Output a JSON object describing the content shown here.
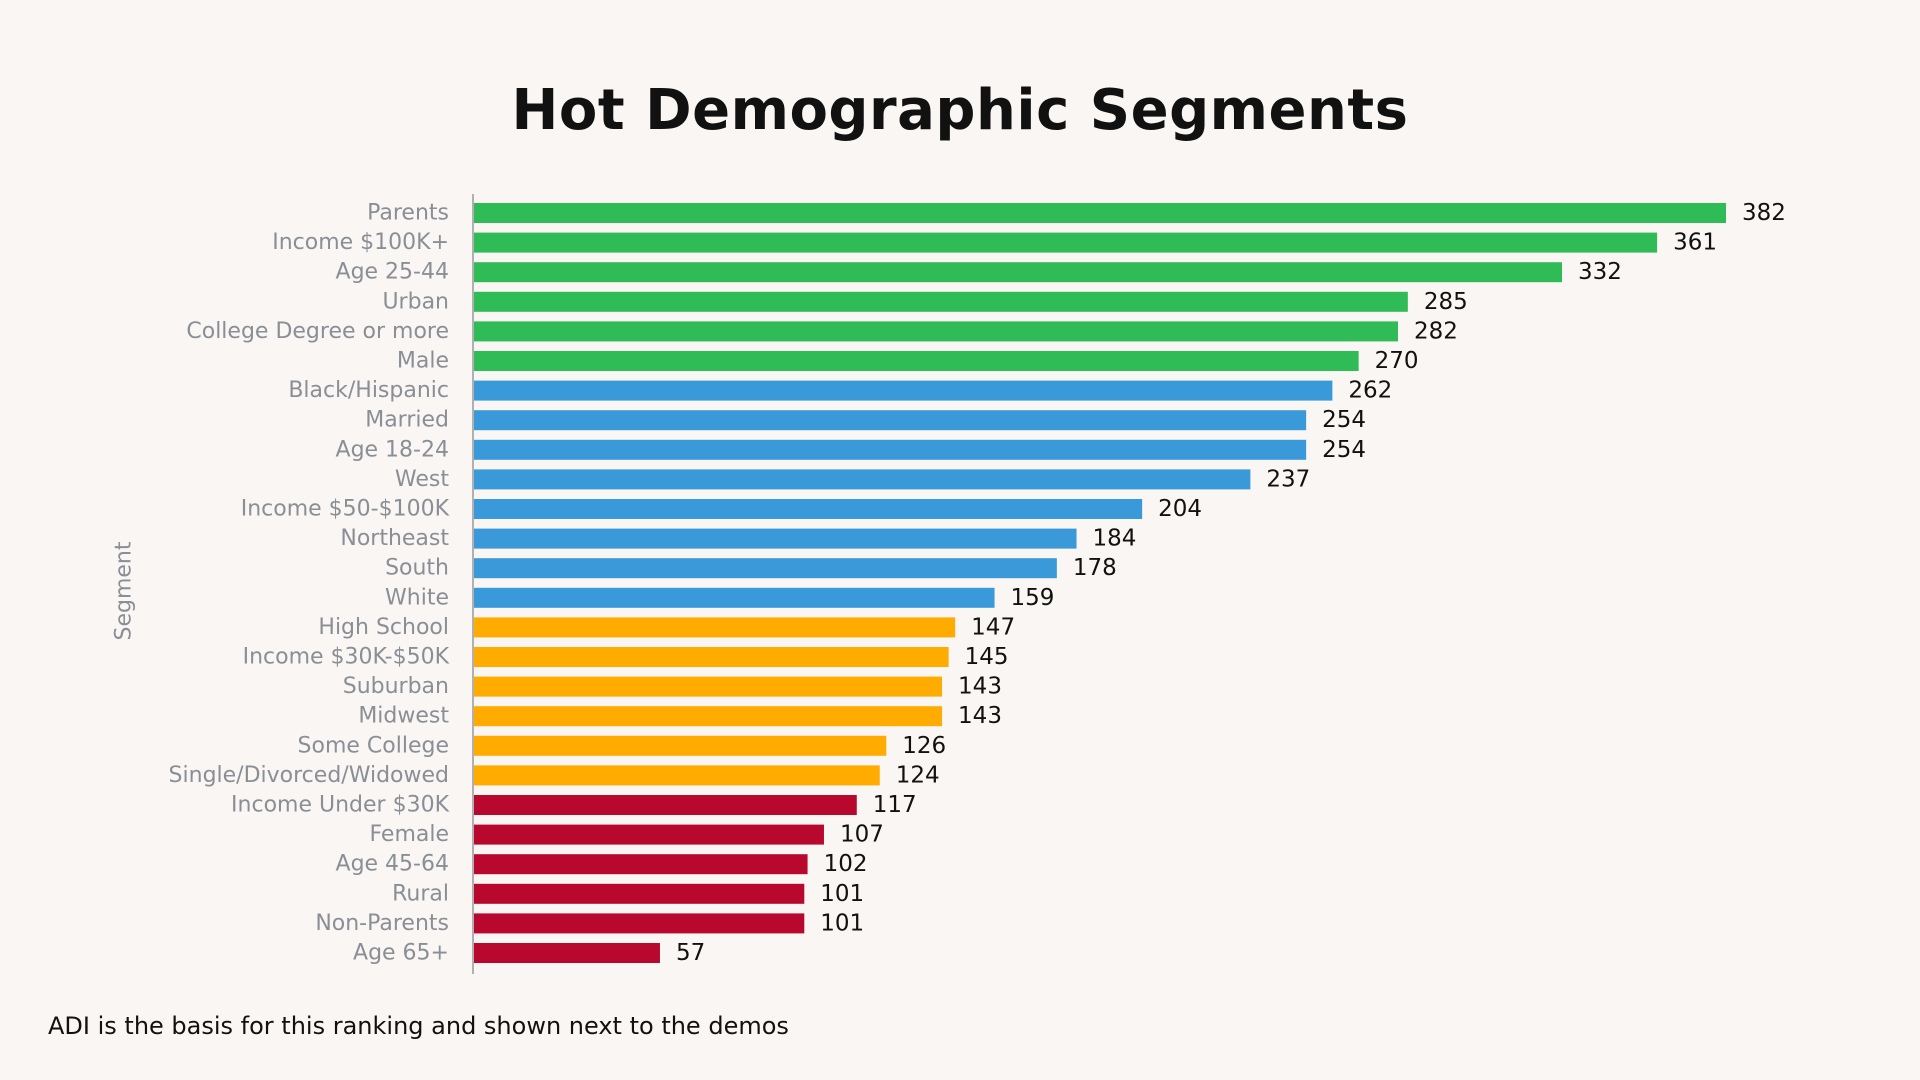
{
  "chart_data": {
    "type": "bar",
    "orientation": "horizontal",
    "title": "Hot Demographic Segments",
    "ylabel": "Segment",
    "xlabel": "",
    "xlim": [
      0,
      382
    ],
    "grid": false,
    "legend": "none",
    "categories": [
      "Parents",
      "Income $100K+",
      "Age 25-44",
      "Urban",
      "College Degree or more",
      "Male",
      "Black/Hispanic",
      "Married",
      "Age 18-24",
      "West",
      "Income $50-$100K",
      "Northeast",
      "South",
      "White",
      "High School",
      "Income $30K-$50K",
      "Suburban",
      "Midwest",
      "Some College",
      "Single/Divorced/Widowed",
      "Income Under $30K",
      "Female",
      "Age 45-64",
      "Rural",
      "Non-Parents",
      "Age 65+"
    ],
    "values": [
      382,
      361,
      332,
      285,
      282,
      270,
      262,
      254,
      254,
      237,
      204,
      184,
      178,
      159,
      147,
      145,
      143,
      143,
      126,
      124,
      117,
      107,
      102,
      101,
      101,
      57
    ],
    "tiers": [
      "top",
      "top",
      "top",
      "top",
      "top",
      "top",
      "upper",
      "upper",
      "upper",
      "upper",
      "upper",
      "upper",
      "upper",
      "upper",
      "middle",
      "middle",
      "middle",
      "middle",
      "middle",
      "middle",
      "low",
      "low",
      "low",
      "low",
      "low",
      "low"
    ],
    "tier_colors": {
      "top": "#2fbb55",
      "upper": "#3a9ad9",
      "middle": "#ffab00",
      "low": "#b8082e"
    },
    "axis_color": "#b0b0b0"
  },
  "footnote": "ADI is the basis for this ranking and shown next to the demos"
}
